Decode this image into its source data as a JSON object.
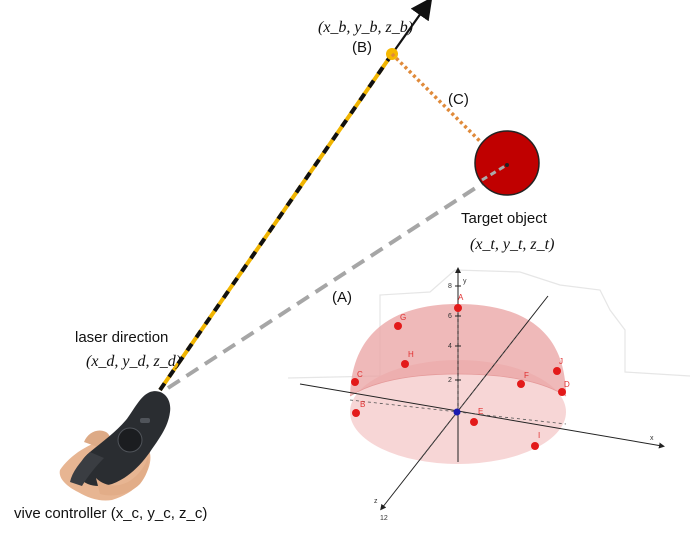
{
  "labels": {
    "b_coord": "(x_b, y_b, z_b)",
    "b_tag": "(B)",
    "c_tag": "(C)",
    "a_tag": "(A)",
    "target_title": "Target object",
    "target_coord": "(x_t, y_t, z_t)",
    "laser_title": "laser direction",
    "laser_coord": "(x_d, y_d, z_d)",
    "controller_label": "vive controller (x_c, y_c, z_c)"
  },
  "axes": {
    "x_label": "x",
    "y_label": "y",
    "z_label": "z",
    "y_ticks": [
      "8",
      "6",
      "4",
      "2"
    ],
    "z_tick": "12"
  },
  "points": [
    "A",
    "B",
    "C",
    "D",
    "E",
    "F",
    "G",
    "H",
    "I",
    "J"
  ],
  "colors": {
    "laser_yellow": "#f0b400",
    "laser_black": "#111111",
    "point_b": "#f5b800",
    "dotted_c": "#e08a3a",
    "target_fill": "#c00000",
    "gray_dash": "#a6a6a6",
    "dome": "#e8a0a0",
    "point_red": "#e31a1a",
    "origin_blue": "#1a1ab0"
  }
}
